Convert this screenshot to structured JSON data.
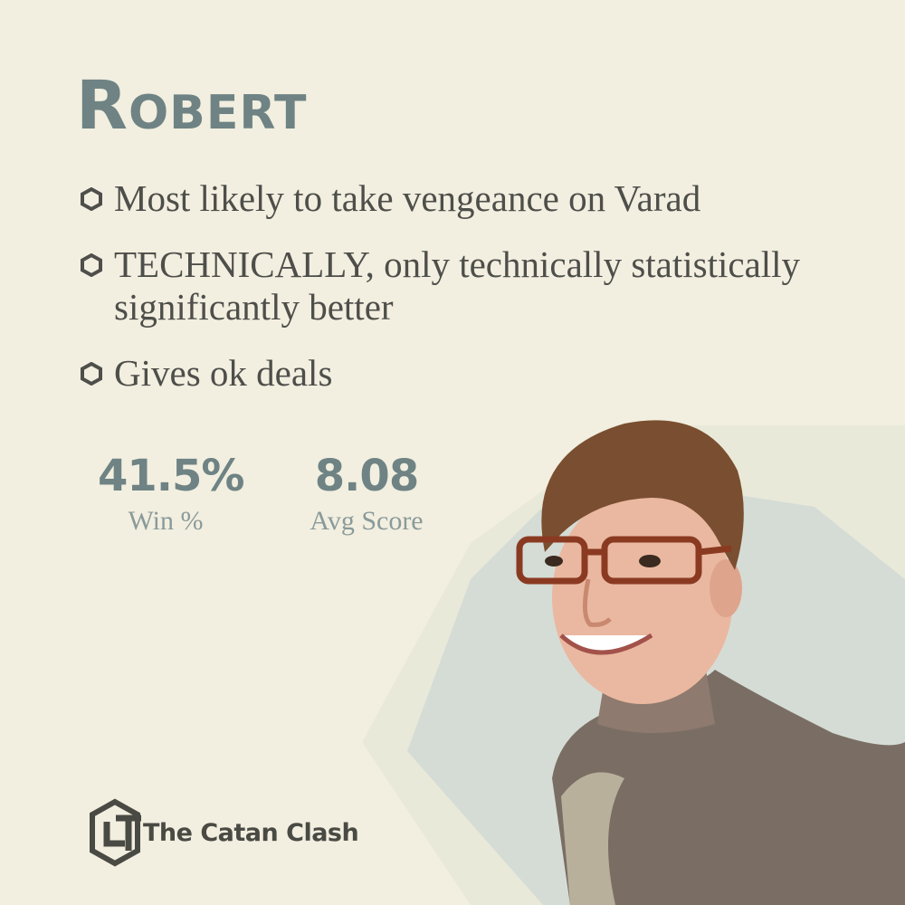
{
  "profile": {
    "name": "Robert",
    "bullets": [
      {
        "icon": "hexagon-bullet-icon",
        "text": "Most likely to take vengeance on Varad"
      },
      {
        "icon": "hexagon-bullet-icon",
        "text": "TECHNICALLY, only technically statistically significantly better"
      },
      {
        "icon": "hexagon-bullet-icon",
        "text": "Gives ok deals"
      }
    ],
    "stats": {
      "win_pct": {
        "value": "41.5%",
        "label": "Win %"
      },
      "avg_score": {
        "value": "8.08",
        "label": "Avg Score"
      }
    }
  },
  "brand": {
    "logo_icon": "catan-clash-logo-icon",
    "name": "The Catan Clash"
  },
  "colors": {
    "background": "#f2efe0",
    "accent": "#6f8384",
    "text": "#4e4e4a",
    "hex_shape": "#d5dcd6"
  }
}
